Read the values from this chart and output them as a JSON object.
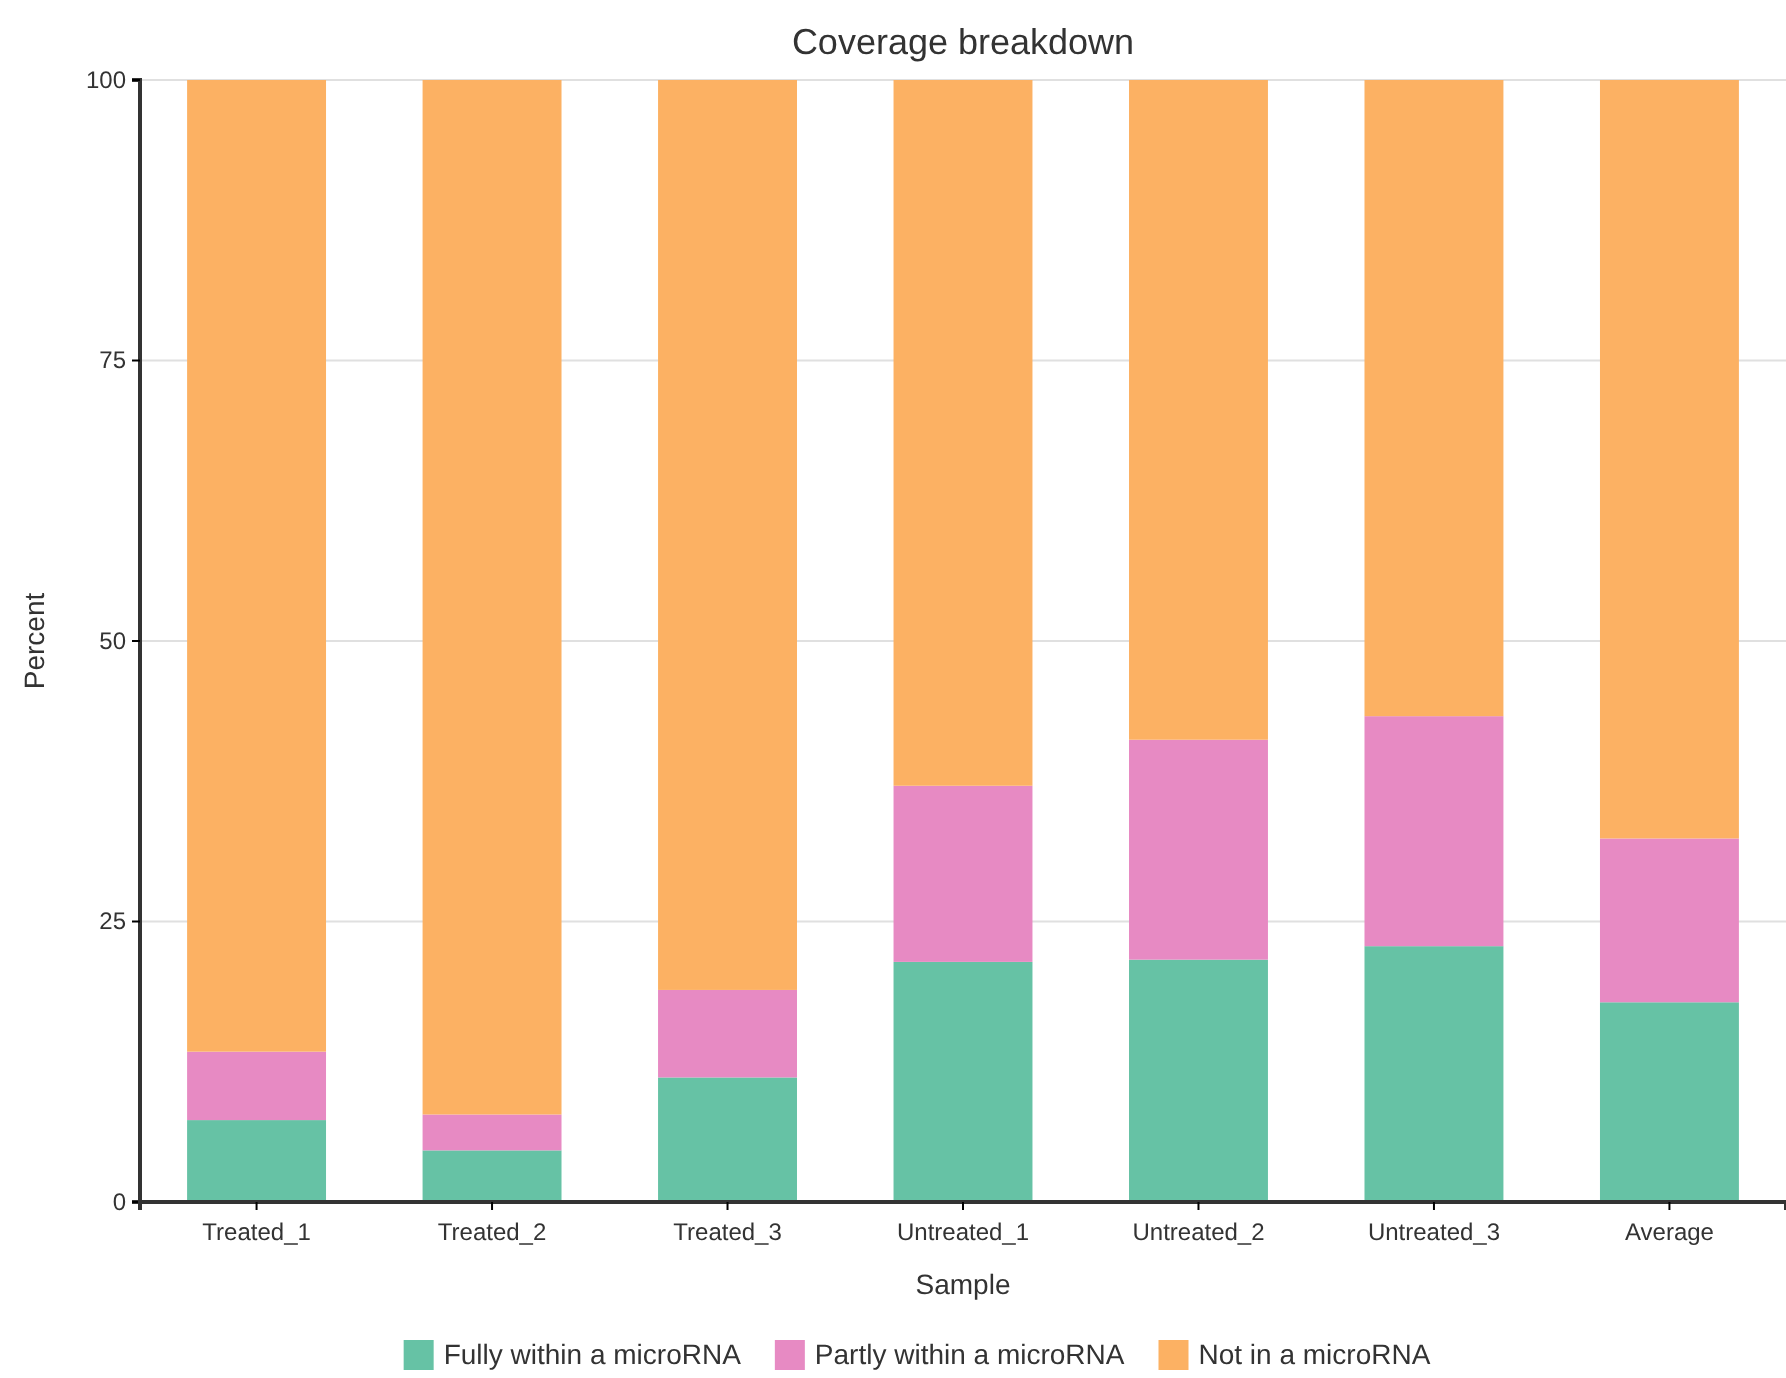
{
  "chart_data": {
    "type": "bar",
    "title": "Coverage breakdown",
    "xlabel": "Sample",
    "ylabel": "Percent",
    "categories": [
      "Treated_1",
      "Treated_2",
      "Treated_3",
      "Untreated_1",
      "Untreated_2",
      "Untreated_3",
      "Average"
    ],
    "stacked": true,
    "series": [
      {
        "name": "Fully within a microRNA",
        "color": "#66c2a5",
        "values": [
          7.3,
          4.6,
          11.1,
          21.4,
          21.6,
          22.8,
          17.8
        ]
      },
      {
        "name": "Partly within a microRNA",
        "color": "#e78ac3",
        "values": [
          6.1,
          3.2,
          7.8,
          15.7,
          19.6,
          20.5,
          14.6
        ]
      },
      {
        "name": "Not in a microRNA",
        "color": "#fcb163",
        "values": [
          86.6,
          92.2,
          81.1,
          62.9,
          58.8,
          56.7,
          67.6
        ]
      }
    ],
    "ylim": [
      0,
      100
    ],
    "yticks": [
      0,
      25,
      50,
      75,
      100
    ],
    "grid": "y",
    "legend": "bottom"
  }
}
